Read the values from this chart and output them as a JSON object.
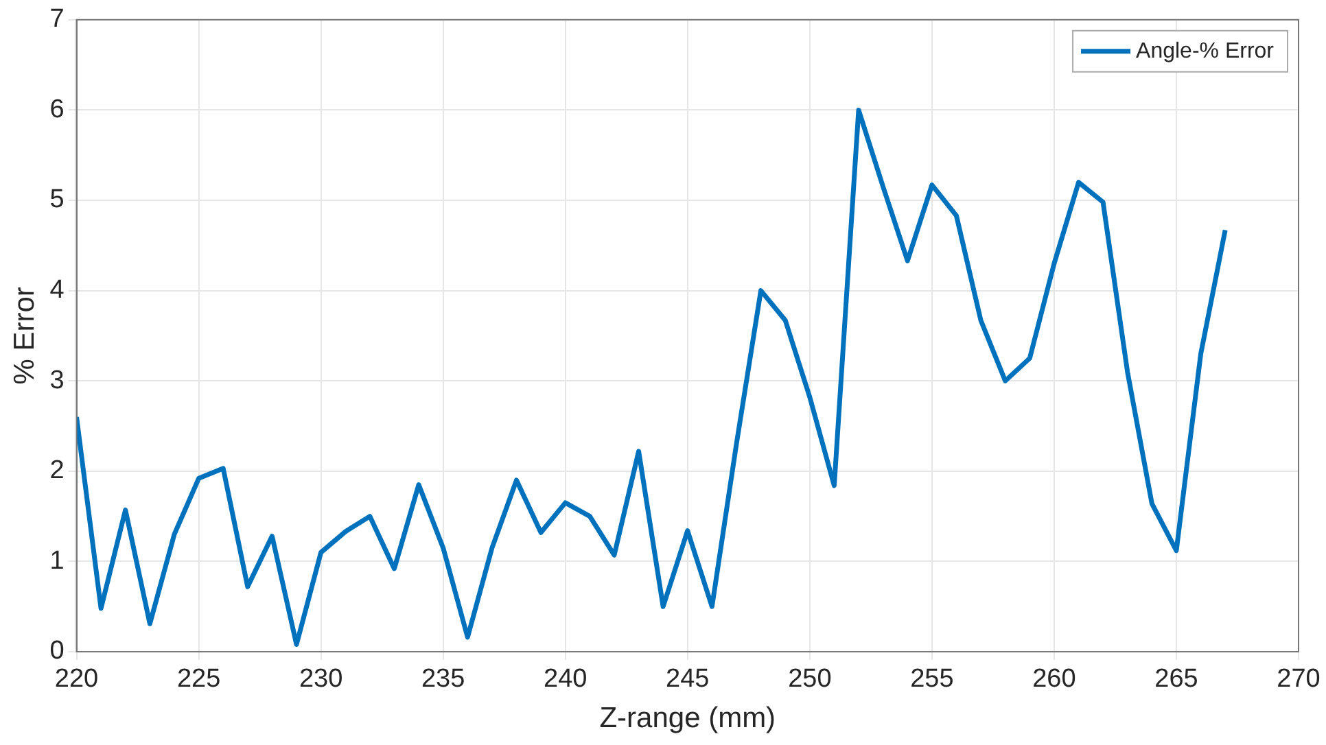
{
  "chart_data": {
    "type": "line",
    "xlabel": "Z-range (mm)",
    "ylabel": "% Error",
    "x": [
      220,
      221,
      222,
      223,
      224,
      225,
      226,
      227,
      228,
      229,
      230,
      231,
      232,
      233,
      234,
      235,
      236,
      237,
      238,
      239,
      240,
      241,
      242,
      243,
      244,
      245,
      246,
      247,
      248,
      249,
      250,
      251,
      252,
      253,
      254,
      255,
      256,
      257,
      258,
      259,
      260,
      261,
      262,
      263,
      264,
      265,
      266,
      267
    ],
    "series": [
      {
        "name": "Angle-% Error",
        "color": "#0072bd",
        "values": [
          2.6,
          0.48,
          1.57,
          0.31,
          1.3,
          1.92,
          2.03,
          0.72,
          1.28,
          0.08,
          1.1,
          1.33,
          1.5,
          0.92,
          1.85,
          1.15,
          0.16,
          1.15,
          1.9,
          1.32,
          1.65,
          1.5,
          1.07,
          2.22,
          0.5,
          1.34,
          0.5,
          2.3,
          4.0,
          3.67,
          2.82,
          1.84,
          6.0,
          5.15,
          4.33,
          5.17,
          4.83,
          3.67,
          3.0,
          3.25,
          4.3,
          5.2,
          4.98,
          3.1,
          1.64,
          1.12,
          3.3,
          4.67
        ]
      }
    ],
    "xlim": [
      220,
      270
    ],
    "xticks": [
      220,
      225,
      230,
      235,
      240,
      245,
      250,
      255,
      260,
      265,
      270
    ],
    "ylim": [
      0,
      7
    ],
    "yticks": [
      0,
      1,
      2,
      3,
      4,
      5,
      6,
      7
    ],
    "grid": true,
    "legend": "top right",
    "marker": "none",
    "line_style": "solid"
  }
}
